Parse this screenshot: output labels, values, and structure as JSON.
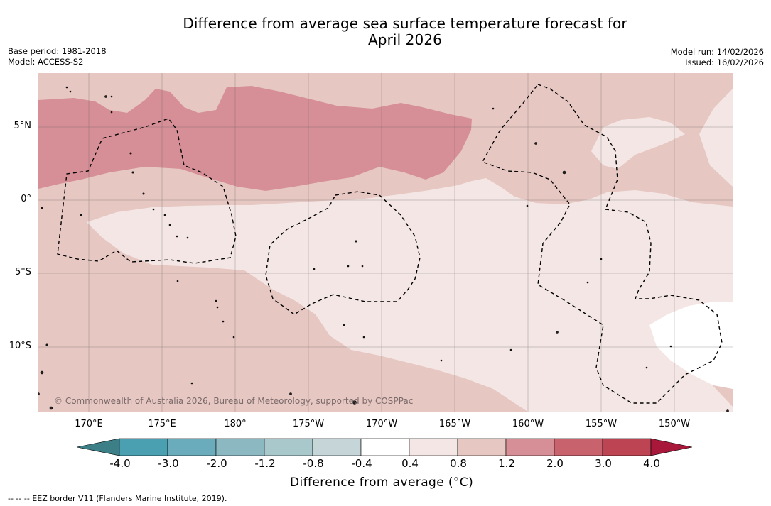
{
  "title_line1": "Difference from average sea surface temperature forecast for",
  "title_line2": "April 2026",
  "base_period": "Base period: 1981-2018",
  "model": "Model: ACCESS-S2",
  "model_run": "Model run: 14/02/2026",
  "issued": "Issued: 16/02/2026",
  "lat_labels": [
    "5°N",
    "0°",
    "5°S",
    "10°S"
  ],
  "lon_labels": [
    "170°E",
    "175°E",
    "180°",
    "175°W",
    "170°W",
    "165°W",
    "160°W",
    "155°W",
    "150°W"
  ],
  "copyright": "© Commonwealth of Australia 2026, Bureau of Meteorology, supported by COSPPac",
  "colorbar": {
    "ticks": [
      "-4.0",
      "-3.0",
      "-2.0",
      "-1.2",
      "-0.8",
      "-0.4",
      "0.4",
      "0.8",
      "1.2",
      "2.0",
      "3.0",
      "4.0"
    ],
    "title": "Difference from average ($^\\circ$C)",
    "title_display": "Difference from average (°C)",
    "colors": {
      "under": "#3d7f87",
      "bins": [
        "#4aa0b0",
        "#6aacbb",
        "#8cb8c2",
        "#a9c8cc",
        "#c5d5d8",
        "#ffffff",
        "#f3e6e4",
        "#e6c7c2",
        "#d68f96",
        "#c8626c",
        "#bd4452"
      ],
      "over": "#a8183a"
    }
  },
  "footnote": "--  --  -- EEZ border V11 (Flanders Marine Institute, 2019).",
  "region_colors": {
    "fill_0.4_0.8": "#f3e6e4",
    "fill_0.8_1.2": "#e6c7c2",
    "fill_1.2_2.0": "#d68f96",
    "fill_-0.4_0.4": "#ffffff"
  }
}
